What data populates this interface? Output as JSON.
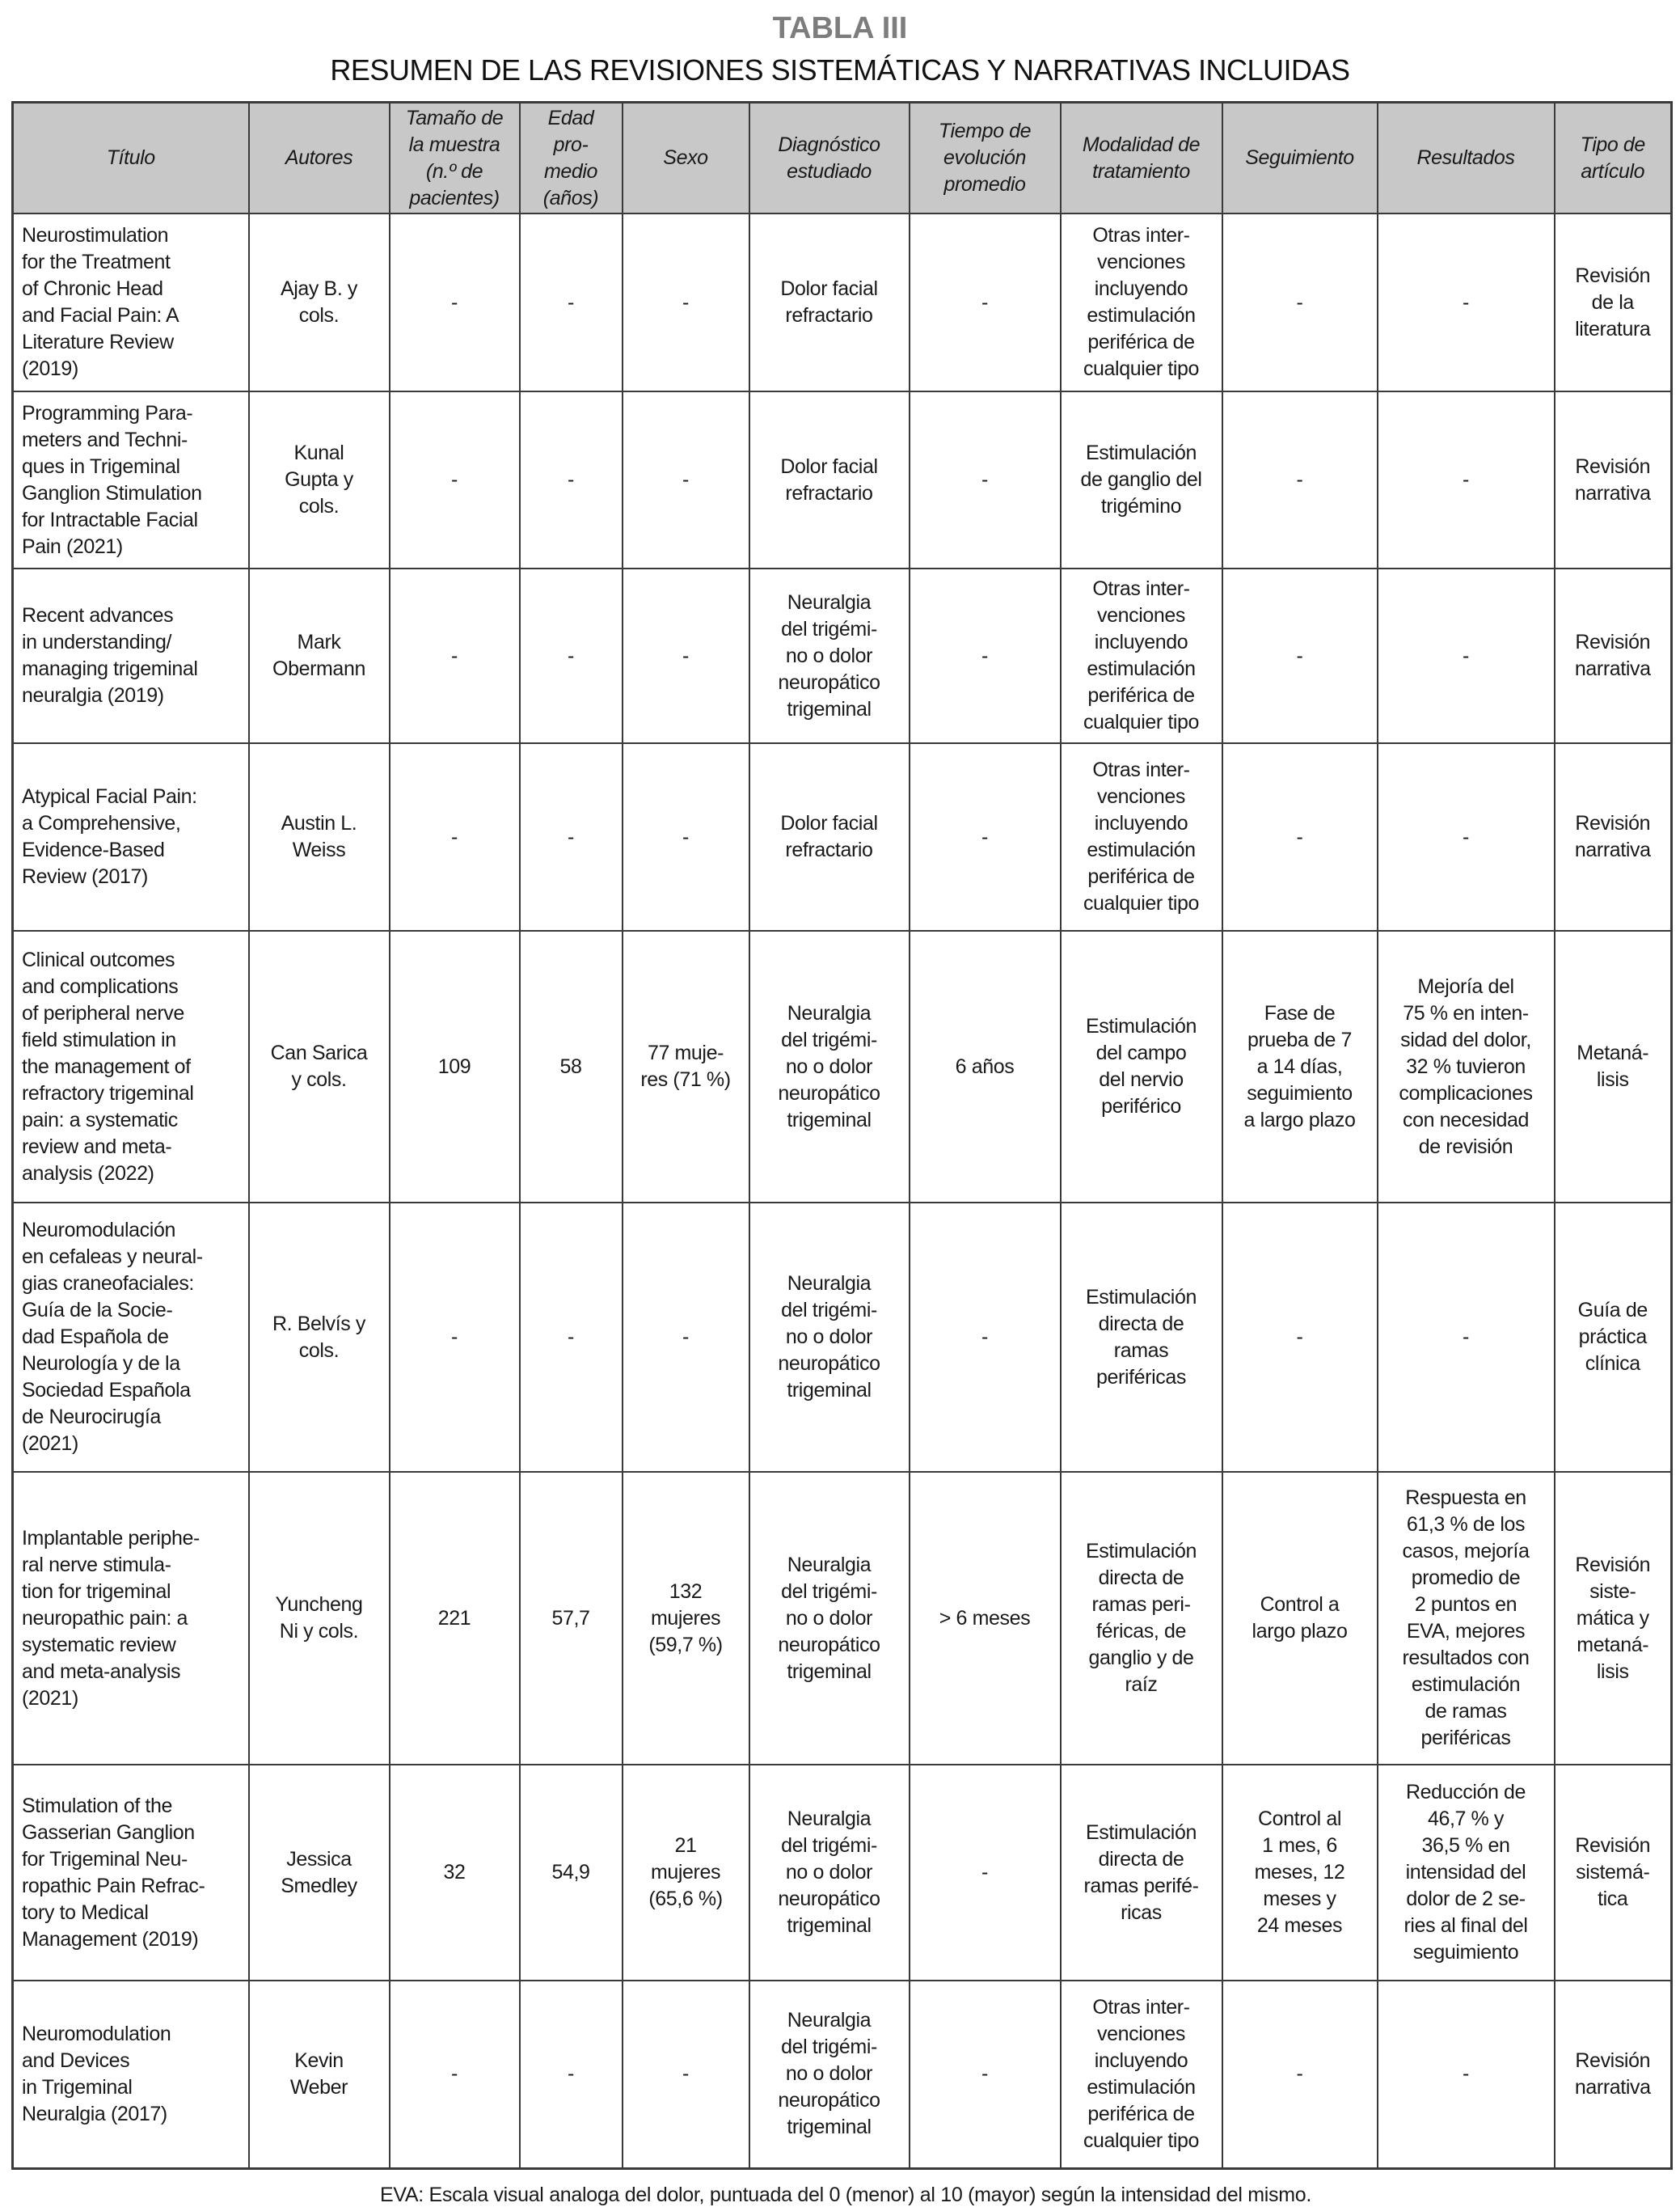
{
  "title": "TABLA III",
  "subtitle": "RESUMEN DE LAS REVISIONES SISTEMÁTICAS Y NARRATIVAS INCLUIDAS",
  "columns": [
    "Título",
    "Autores",
    "Tamaño de\nla muestra\n(n.º de\npacientes)",
    "Edad\npro-\nmedio\n(años)",
    "Sexo",
    "Diagnóstico\nestudiado",
    "Tiempo de\nevolución\npromedio",
    "Modalidad de\ntratamiento",
    "Seguimiento",
    "Resultados",
    "Tipo de\nartículo"
  ],
  "rows": [
    [
      "Neurostimulation\nfor the Treatment\nof Chronic Head\nand Facial Pain: A\nLiterature Review\n(2019)",
      "Ajay B. y\ncols.",
      "-",
      "-",
      "-",
      "Dolor facial\nrefractario",
      "-",
      "Otras inter-\nvenciones\nincluyendo\nestimulación\nperiférica de\ncualquier tipo",
      "-",
      "-",
      "Revisión\nde la\nliteratura"
    ],
    [
      "Programming Para-\nmeters and Techni-\nques in Trigeminal\nGanglion Stimulation\nfor Intractable Facial\nPain (2021)",
      "Kunal\nGupta y\ncols.",
      "-",
      "-",
      "-",
      "Dolor facial\nrefractario",
      "-",
      "Estimulación\nde ganglio del\ntrigémino",
      "-",
      "-",
      "Revisión\nnarrativa"
    ],
    [
      "Recent advances\nin understanding/\nmanaging trigeminal\nneuralgia (2019)",
      "Mark\nObermann",
      "-",
      "-",
      "-",
      "Neuralgia\ndel trigémi-\nno o dolor\nneuropático\ntrigeminal",
      "-",
      "Otras inter-\nvenciones\nincluyendo\nestimulación\nperiférica de\ncualquier tipo",
      "-",
      "-",
      "Revisión\nnarrativa"
    ],
    [
      "Atypical Facial Pain:\na Comprehensive,\nEvidence-Based\nReview (2017)",
      "Austin L.\nWeiss",
      "-",
      "-",
      "-",
      "Dolor facial\nrefractario",
      "-",
      "Otras inter-\nvenciones\nincluyendo\nestimulación\nperiférica de\ncualquier tipo",
      "-",
      "-",
      "Revisión\nnarrativa"
    ],
    [
      "Clinical outcomes\nand complications\nof peripheral nerve\nfield stimulation in\nthe management of\nrefractory trigeminal\npain: a systematic\nreview and meta-\nanalysis (2022)",
      "Can Sarica\ny cols.",
      "109",
      "58",
      "77 muje-\nres (71 %)",
      "Neuralgia\ndel trigémi-\nno o dolor\nneuropático\ntrigeminal",
      "6 años",
      "Estimulación\ndel campo\ndel nervio\nperiférico",
      "Fase de\nprueba de 7\na 14 días,\nseguimiento\na largo plazo",
      "Mejoría del\n75 % en inten-\nsidad del dolor,\n32 % tuvieron\ncomplicaciones\ncon necesidad\nde revisión",
      "Metaná-\nlisis"
    ],
    [
      "Neuromodulación\nen cefaleas y neural-\ngias craneofaciales:\nGuía de la Socie-\ndad Española de\nNeurología y de la\nSociedad Española\nde Neurocirugía\n(2021)",
      "R. Belvís y\ncols.",
      "-",
      "-",
      "-",
      "Neuralgia\ndel trigémi-\nno o dolor\nneuropático\ntrigeminal",
      "-",
      "Estimulación\ndirecta de\nramas\nperiféricas",
      "-",
      "-",
      "Guía de\npráctica\nclínica"
    ],
    [
      "Implantable periphe-\nral nerve stimula-\ntion for trigeminal\nneuropathic pain: a\nsystematic review\nand meta-analysis\n(2021)",
      "Yuncheng\nNi y cols.",
      "221",
      "57,7",
      "132\nmujeres\n(59,7 %)",
      "Neuralgia\ndel trigémi-\nno o dolor\nneuropático\ntrigeminal",
      "> 6 meses",
      "Estimulación\ndirecta de\nramas peri-\nféricas, de\nganglio y de\nraíz",
      "Control a\nlargo plazo",
      "Respuesta en\n61,3 % de los\ncasos, mejoría\npromedio de\n2 puntos en\nEVA, mejores\nresultados con\nestimulación\nde ramas\nperiféricas",
      "Revisión\nsiste-\nmática y\nmetaná-\nlisis"
    ],
    [
      "Stimulation of the\nGasserian Ganglion\nfor Trigeminal Neu-\nropathic Pain Refrac-\ntory to Medical\nManagement (2019)",
      "Jessica\nSmedley",
      "32",
      "54,9",
      "21\nmujeres\n(65,6 %)",
      "Neuralgia\ndel trigémi-\nno o dolor\nneuropático\ntrigeminal",
      "-",
      "Estimulación\ndirecta de\nramas perifé-\nricas",
      "Control al\n1 mes, 6\nmeses, 12\nmeses y\n24 meses",
      "Reducción de\n46,7 % y\n36,5 % en\nintensidad del\ndolor de 2 se-\nries al final del\nseguimiento",
      "Revisión\nsistemá-\ntica"
    ],
    [
      "Neuromodulation\nand Devices\nin Trigeminal\nNeuralgia (2017)",
      "Kevin\nWeber",
      "-",
      "-",
      "-",
      "Neuralgia\ndel trigémi-\nno o dolor\nneuropático\ntrigeminal",
      "-",
      "Otras inter-\nvenciones\nincluyendo\nestimulación\nperiférica de\ncualquier tipo",
      "-",
      "-",
      "Revisión\nnarrativa"
    ]
  ],
  "footnote": "EVA: Escala visual analoga del dolor, puntuada del 0 (menor) al 10 (mayor) según la intensidad del mismo."
}
